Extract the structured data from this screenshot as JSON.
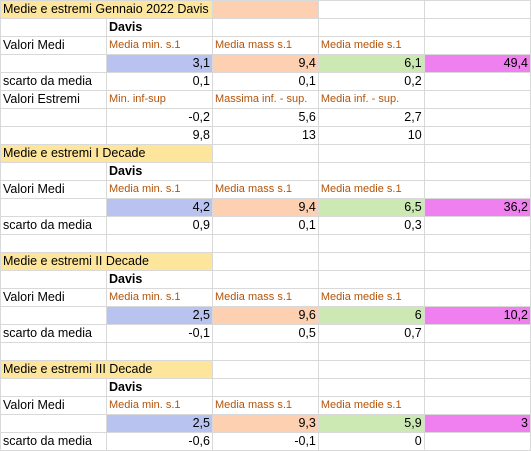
{
  "colors": {
    "title_yellow": "#fde59b",
    "peach": "#fcd0b0",
    "blue": "#b8c4ef",
    "green": "#cde9b3",
    "magenta": "#f07ff0",
    "header_orange_text": "#b45309"
  },
  "titles": {
    "gennaio": "Medie e estremi Gennaio 2022 Davis",
    "decade1": "Medie e estremi I Decade",
    "decade2": "Medie e estremi II Decade",
    "decade3": "Medie e estremi III Decade"
  },
  "station": "Davis",
  "labels": {
    "valori_medi": "Valori Medi",
    "scarto": "scarto da media",
    "valori_estremi": "Valori Estremi"
  },
  "headers": {
    "min": "Media min. s.1",
    "mass": "Media mass s.1",
    "medie": "Media medie s.1",
    "min_inf_sup": "Min. inf-sup",
    "mass_inf_sup": "Massima inf. - sup.",
    "media_inf_sup": "Media inf. - sup."
  },
  "gennaio": {
    "medi": [
      "3,1",
      "9,4",
      "6,1",
      "49,4"
    ],
    "scarto": [
      "0,1",
      "0,1",
      "0,2"
    ],
    "estremi_inf": [
      "-0,2",
      "5,6",
      "2,7"
    ],
    "estremi_sup": [
      "9,8",
      "13",
      "10"
    ]
  },
  "decade1": {
    "medi": [
      "4,2",
      "9,4",
      "6,5",
      "36,2"
    ],
    "scarto": [
      "0,9",
      "0,1",
      "0,3"
    ]
  },
  "decade2": {
    "medi": [
      "2,5",
      "9,6",
      "6",
      "10,2"
    ],
    "scarto": [
      "-0,1",
      "0,5",
      "0,7"
    ]
  },
  "decade3": {
    "medi": [
      "2,5",
      "9,3",
      "5,9",
      "3"
    ],
    "scarto": [
      "-0,6",
      "-0,1",
      "0"
    ]
  }
}
